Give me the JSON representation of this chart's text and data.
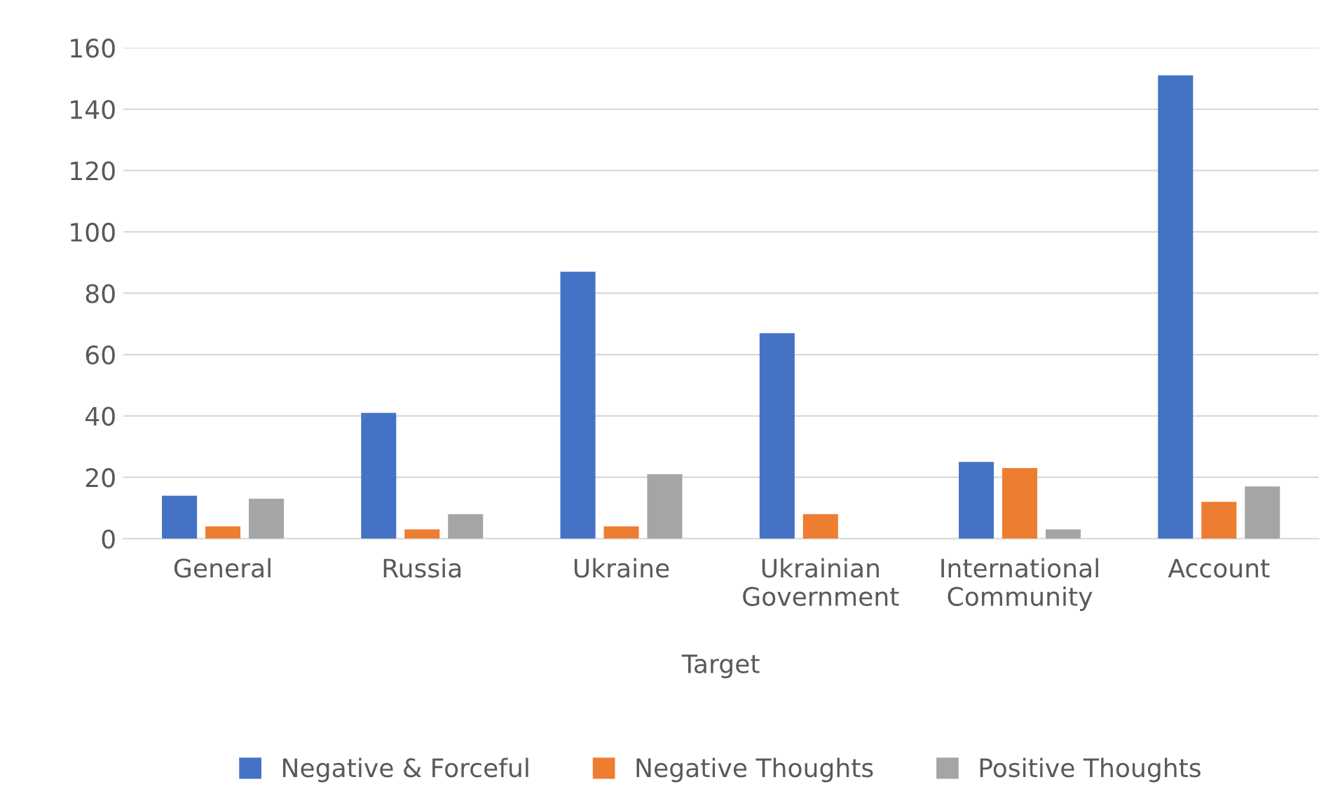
{
  "chart_data": {
    "type": "bar",
    "xlabel": "Target",
    "categories": [
      "General",
      "Russia",
      "Ukraine",
      "Ukrainian\nGovernment",
      "International\nCommunity",
      "Account"
    ],
    "series": [
      {
        "name": "Negative & Forceful",
        "color": "#4472c4",
        "values": [
          14,
          41,
          87,
          67,
          25,
          151
        ]
      },
      {
        "name": "Negative Thoughts",
        "color": "#ed7d31",
        "values": [
          4,
          3,
          4,
          8,
          23,
          12
        ]
      },
      {
        "name": "Positive Thoughts",
        "color": "#a5a5a5",
        "values": [
          13,
          8,
          21,
          0,
          3,
          17
        ]
      }
    ],
    "ylim": [
      0,
      160
    ],
    "yticks": [
      0,
      20,
      40,
      60,
      80,
      100,
      120,
      140,
      160
    ],
    "grid": "y",
    "legend": "bottom"
  }
}
